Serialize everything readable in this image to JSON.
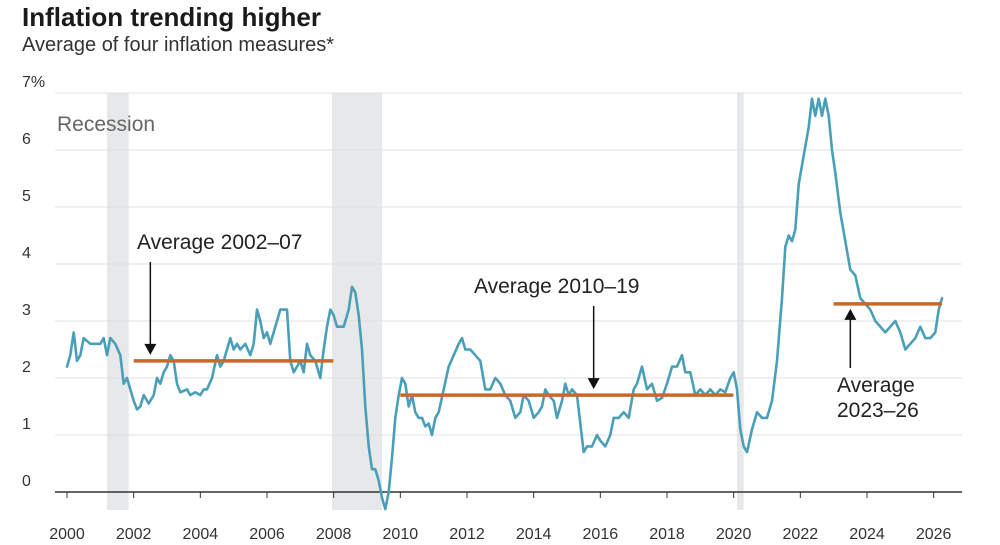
{
  "header": {
    "title": "Inflation trending higher",
    "subtitle": "Average of four inflation measures*"
  },
  "chart_data": {
    "type": "line",
    "title": "Inflation trending higher",
    "subtitle": "Average of four inflation measures*",
    "xlabel": "",
    "ylabel": "",
    "xlim": [
      2000,
      2026.4
    ],
    "ylim": [
      -0.3,
      7
    ],
    "y_ticks": [
      0,
      1,
      2,
      3,
      4,
      5,
      6,
      7
    ],
    "y_tick_labels": [
      "0",
      "1",
      "2",
      "3",
      "4",
      "5",
      "6",
      "7%"
    ],
    "x_ticks": [
      2000,
      2002,
      2004,
      2006,
      2008,
      2010,
      2012,
      2014,
      2016,
      2018,
      2020,
      2022,
      2024,
      2026
    ],
    "x_tick_labels": [
      "2000",
      "2002",
      "2004",
      "2006",
      "2008",
      "2010",
      "2012",
      "2014",
      "2016",
      "2018",
      "2020",
      "2022",
      "2024",
      "2026"
    ],
    "grid": "horizontal",
    "colors": {
      "line": "#4a9fb8",
      "average": "#c8692a",
      "recession": "#e6e8ea",
      "grid": "#e0e0e0",
      "axis": "#333333"
    },
    "recessions": [
      {
        "start": 2001.2,
        "end": 2001.85
      },
      {
        "start": 2007.95,
        "end": 2009.45
      },
      {
        "start": 2020.1,
        "end": 2020.3
      }
    ],
    "recession_label": "Recession",
    "series": [
      {
        "values": [
          [
            2000.0,
            2.2
          ],
          [
            2000.1,
            2.4
          ],
          [
            2000.2,
            2.8
          ],
          [
            2000.3,
            2.3
          ],
          [
            2000.4,
            2.4
          ],
          [
            2000.5,
            2.7
          ],
          [
            2000.7,
            2.6
          ],
          [
            2000.9,
            2.6
          ],
          [
            2001.0,
            2.6
          ],
          [
            2001.1,
            2.7
          ],
          [
            2001.2,
            2.4
          ],
          [
            2001.3,
            2.7
          ],
          [
            2001.45,
            2.6
          ],
          [
            2001.6,
            2.4
          ],
          [
            2001.7,
            1.9
          ],
          [
            2001.8,
            2.0
          ],
          [
            2001.9,
            1.8
          ],
          [
            2002.0,
            1.6
          ],
          [
            2002.1,
            1.45
          ],
          [
            2002.2,
            1.5
          ],
          [
            2002.3,
            1.7
          ],
          [
            2002.45,
            1.55
          ],
          [
            2002.6,
            1.7
          ],
          [
            2002.7,
            2.0
          ],
          [
            2002.8,
            1.9
          ],
          [
            2002.9,
            2.1
          ],
          [
            2003.0,
            2.2
          ],
          [
            2003.1,
            2.4
          ],
          [
            2003.2,
            2.3
          ],
          [
            2003.3,
            1.9
          ],
          [
            2003.4,
            1.75
          ],
          [
            2003.6,
            1.8
          ],
          [
            2003.7,
            1.7
          ],
          [
            2003.85,
            1.75
          ],
          [
            2004.0,
            1.7
          ],
          [
            2004.1,
            1.8
          ],
          [
            2004.2,
            1.8
          ],
          [
            2004.35,
            2.0
          ],
          [
            2004.5,
            2.4
          ],
          [
            2004.6,
            2.2
          ],
          [
            2004.7,
            2.3
          ],
          [
            2004.8,
            2.5
          ],
          [
            2004.9,
            2.7
          ],
          [
            2005.0,
            2.5
          ],
          [
            2005.1,
            2.6
          ],
          [
            2005.2,
            2.5
          ],
          [
            2005.35,
            2.6
          ],
          [
            2005.5,
            2.4
          ],
          [
            2005.6,
            2.6
          ],
          [
            2005.7,
            3.2
          ],
          [
            2005.8,
            3.0
          ],
          [
            2005.9,
            2.7
          ],
          [
            2006.0,
            2.8
          ],
          [
            2006.1,
            2.6
          ],
          [
            2006.25,
            2.9
          ],
          [
            2006.4,
            3.2
          ],
          [
            2006.6,
            3.2
          ],
          [
            2006.7,
            2.3
          ],
          [
            2006.8,
            2.1
          ],
          [
            2006.9,
            2.2
          ],
          [
            2007.0,
            2.3
          ],
          [
            2007.1,
            2.1
          ],
          [
            2007.2,
            2.6
          ],
          [
            2007.3,
            2.4
          ],
          [
            2007.45,
            2.3
          ],
          [
            2007.6,
            2.0
          ],
          [
            2007.7,
            2.5
          ],
          [
            2007.8,
            2.9
          ],
          [
            2007.9,
            3.2
          ],
          [
            2008.0,
            3.1
          ],
          [
            2008.1,
            2.9
          ],
          [
            2008.3,
            2.9
          ],
          [
            2008.45,
            3.2
          ],
          [
            2008.55,
            3.6
          ],
          [
            2008.65,
            3.5
          ],
          [
            2008.75,
            3.1
          ],
          [
            2008.85,
            2.5
          ],
          [
            2008.95,
            1.5
          ],
          [
            2009.05,
            0.8
          ],
          [
            2009.15,
            0.4
          ],
          [
            2009.25,
            0.4
          ],
          [
            2009.35,
            0.2
          ],
          [
            2009.45,
            -0.1
          ],
          [
            2009.55,
            -0.3
          ],
          [
            2009.65,
            0.0
          ],
          [
            2009.75,
            0.6
          ],
          [
            2009.85,
            1.3
          ],
          [
            2009.95,
            1.7
          ],
          [
            2010.05,
            2.0
          ],
          [
            2010.15,
            1.9
          ],
          [
            2010.25,
            1.5
          ],
          [
            2010.35,
            1.7
          ],
          [
            2010.45,
            1.4
          ],
          [
            2010.55,
            1.3
          ],
          [
            2010.65,
            1.3
          ],
          [
            2010.75,
            1.15
          ],
          [
            2010.85,
            1.2
          ],
          [
            2010.95,
            1.0
          ],
          [
            2011.05,
            1.3
          ],
          [
            2011.15,
            1.4
          ],
          [
            2011.3,
            1.8
          ],
          [
            2011.45,
            2.2
          ],
          [
            2011.6,
            2.4
          ],
          [
            2011.75,
            2.6
          ],
          [
            2011.85,
            2.7
          ],
          [
            2011.95,
            2.5
          ],
          [
            2012.1,
            2.5
          ],
          [
            2012.25,
            2.4
          ],
          [
            2012.4,
            2.3
          ],
          [
            2012.55,
            1.8
          ],
          [
            2012.7,
            1.8
          ],
          [
            2012.85,
            2.0
          ],
          [
            2013.0,
            1.9
          ],
          [
            2013.15,
            1.7
          ],
          [
            2013.3,
            1.6
          ],
          [
            2013.45,
            1.3
          ],
          [
            2013.6,
            1.4
          ],
          [
            2013.7,
            1.7
          ],
          [
            2013.85,
            1.6
          ],
          [
            2014.0,
            1.3
          ],
          [
            2014.15,
            1.4
          ],
          [
            2014.25,
            1.5
          ],
          [
            2014.35,
            1.8
          ],
          [
            2014.45,
            1.7
          ],
          [
            2014.6,
            1.6
          ],
          [
            2014.7,
            1.3
          ],
          [
            2014.85,
            1.6
          ],
          [
            2014.95,
            1.9
          ],
          [
            2015.05,
            1.7
          ],
          [
            2015.15,
            1.8
          ],
          [
            2015.3,
            1.7
          ],
          [
            2015.4,
            1.2
          ],
          [
            2015.5,
            0.7
          ],
          [
            2015.6,
            0.8
          ],
          [
            2015.75,
            0.8
          ],
          [
            2015.9,
            1.0
          ],
          [
            2016.0,
            0.9
          ],
          [
            2016.15,
            0.8
          ],
          [
            2016.3,
            1.0
          ],
          [
            2016.4,
            1.3
          ],
          [
            2016.55,
            1.3
          ],
          [
            2016.7,
            1.4
          ],
          [
            2016.85,
            1.3
          ],
          [
            2017.0,
            1.8
          ],
          [
            2017.1,
            1.9
          ],
          [
            2017.25,
            2.2
          ],
          [
            2017.4,
            1.8
          ],
          [
            2017.55,
            1.9
          ],
          [
            2017.7,
            1.6
          ],
          [
            2017.85,
            1.65
          ],
          [
            2018.0,
            1.9
          ],
          [
            2018.15,
            2.2
          ],
          [
            2018.3,
            2.2
          ],
          [
            2018.45,
            2.4
          ],
          [
            2018.55,
            2.1
          ],
          [
            2018.7,
            2.1
          ],
          [
            2018.85,
            1.7
          ],
          [
            2019.0,
            1.8
          ],
          [
            2019.15,
            1.7
          ],
          [
            2019.3,
            1.8
          ],
          [
            2019.45,
            1.7
          ],
          [
            2019.6,
            1.8
          ],
          [
            2019.75,
            1.75
          ],
          [
            2019.9,
            2.0
          ],
          [
            2020.0,
            2.1
          ],
          [
            2020.1,
            1.8
          ],
          [
            2020.2,
            1.1
          ],
          [
            2020.3,
            0.8
          ],
          [
            2020.4,
            0.7
          ],
          [
            2020.55,
            1.1
          ],
          [
            2020.7,
            1.4
          ],
          [
            2020.85,
            1.3
          ],
          [
            2021.0,
            1.3
          ],
          [
            2021.15,
            1.6
          ],
          [
            2021.3,
            2.3
          ],
          [
            2021.45,
            3.4
          ],
          [
            2021.55,
            4.3
          ],
          [
            2021.65,
            4.5
          ],
          [
            2021.75,
            4.4
          ],
          [
            2021.85,
            4.6
          ],
          [
            2021.95,
            5.4
          ],
          [
            2022.1,
            5.9
          ],
          [
            2022.25,
            6.4
          ],
          [
            2022.35,
            6.9
          ],
          [
            2022.45,
            6.6
          ],
          [
            2022.55,
            6.9
          ],
          [
            2022.65,
            6.6
          ],
          [
            2022.75,
            6.9
          ],
          [
            2022.85,
            6.6
          ],
          [
            2022.95,
            6.0
          ],
          [
            2023.05,
            5.6
          ],
          [
            2023.2,
            4.9
          ],
          [
            2023.35,
            4.4
          ],
          [
            2023.5,
            3.9
          ],
          [
            2023.65,
            3.8
          ],
          [
            2023.8,
            3.4
          ],
          [
            2023.95,
            3.3
          ],
          [
            2024.1,
            3.2
          ],
          [
            2024.25,
            3.0
          ],
          [
            2024.4,
            2.9
          ],
          [
            2024.55,
            2.8
          ],
          [
            2024.7,
            2.9
          ],
          [
            2024.85,
            3.0
          ],
          [
            2025.0,
            2.8
          ],
          [
            2025.15,
            2.5
          ],
          [
            2025.3,
            2.6
          ],
          [
            2025.45,
            2.7
          ],
          [
            2025.6,
            2.9
          ],
          [
            2025.75,
            2.7
          ],
          [
            2025.9,
            2.7
          ],
          [
            2026.05,
            2.8
          ],
          [
            2026.15,
            3.2
          ],
          [
            2026.25,
            3.4
          ]
        ]
      }
    ],
    "averages": [
      {
        "start": 2002.0,
        "end": 2007.99,
        "value": 2.3,
        "label": "Average 2002–07"
      },
      {
        "start": 2010.0,
        "end": 2019.99,
        "value": 1.7,
        "label": "Average 2010–19"
      },
      {
        "start": 2023.0,
        "end": 2026.25,
        "value": 3.3,
        "label_lines": [
          "Average",
          "2023–26"
        ]
      }
    ]
  }
}
